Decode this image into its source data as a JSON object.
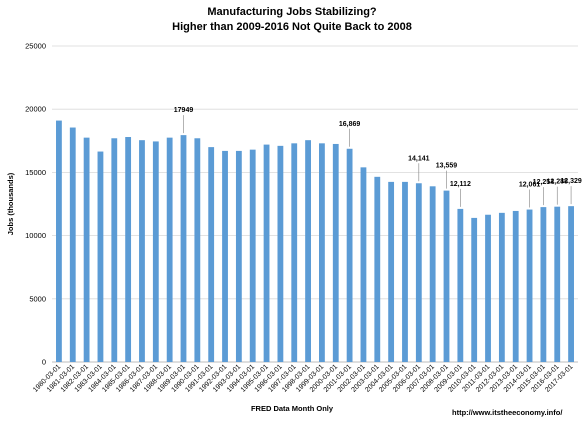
{
  "chart_data": {
    "type": "bar",
    "title": "Manufacturing Jobs Stabilizing?",
    "subtitle": "Higher than 2009-2016 Not Quite Back to 2008",
    "xlabel": "FRED Data Month Only",
    "ylabel": "Jobs (thousands)",
    "ylim": [
      0,
      25000
    ],
    "yticks": [
      0,
      5000,
      10000,
      15000,
      20000,
      25000
    ],
    "grid": true,
    "bar_color": "#5B9BD5",
    "grid_color": "#d9d9d9",
    "categories": [
      "1980-03-01",
      "1981-03-01",
      "1982-03-01",
      "1983-03-01",
      "1984-03-01",
      "1985-03-01",
      "1986-03-01",
      "1987-03-01",
      "1988-03-01",
      "1989-03-01",
      "1990-03-01",
      "1991-03-01",
      "1992-03-01",
      "1993-03-01",
      "1994-03-01",
      "1995-03-01",
      "1996-03-01",
      "1997-03-01",
      "1998-03-01",
      "1999-03-01",
      "2000-03-01",
      "2001-03-01",
      "2002-03-01",
      "2003-03-01",
      "2004-03-01",
      "2005-03-01",
      "2006-03-01",
      "2007-03-01",
      "2008-03-01",
      "2009-03-01",
      "2010-03-01",
      "2011-03-01",
      "2012-03-01",
      "2013-03-01",
      "2014-03-01",
      "2015-03-01",
      "2016-03-01",
      "2017-03-01"
    ],
    "values": [
      19100,
      18550,
      17750,
      16650,
      17700,
      17800,
      17550,
      17450,
      17750,
      17949,
      17700,
      17000,
      16700,
      16700,
      16800,
      17200,
      17100,
      17300,
      17550,
      17300,
      17250,
      16869,
      15400,
      14650,
      14250,
      14250,
      14141,
      13900,
      13559,
      12112,
      11400,
      11650,
      11800,
      11950,
      12061,
      12254,
      12288,
      12329
    ],
    "data_labels": [
      {
        "index": 9,
        "text": "17949"
      },
      {
        "index": 21,
        "text": "16,869"
      },
      {
        "index": 26,
        "text": "14,141"
      },
      {
        "index": 28,
        "text": "13,559"
      },
      {
        "index": 29,
        "text": "12,112"
      },
      {
        "index": 34,
        "text": "12,061"
      },
      {
        "index": 35,
        "text": "12,254"
      },
      {
        "index": 36,
        "text": "12,288"
      },
      {
        "index": 37,
        "text": "12,329"
      }
    ]
  },
  "source": "http://www.itstheeconomy.info/"
}
